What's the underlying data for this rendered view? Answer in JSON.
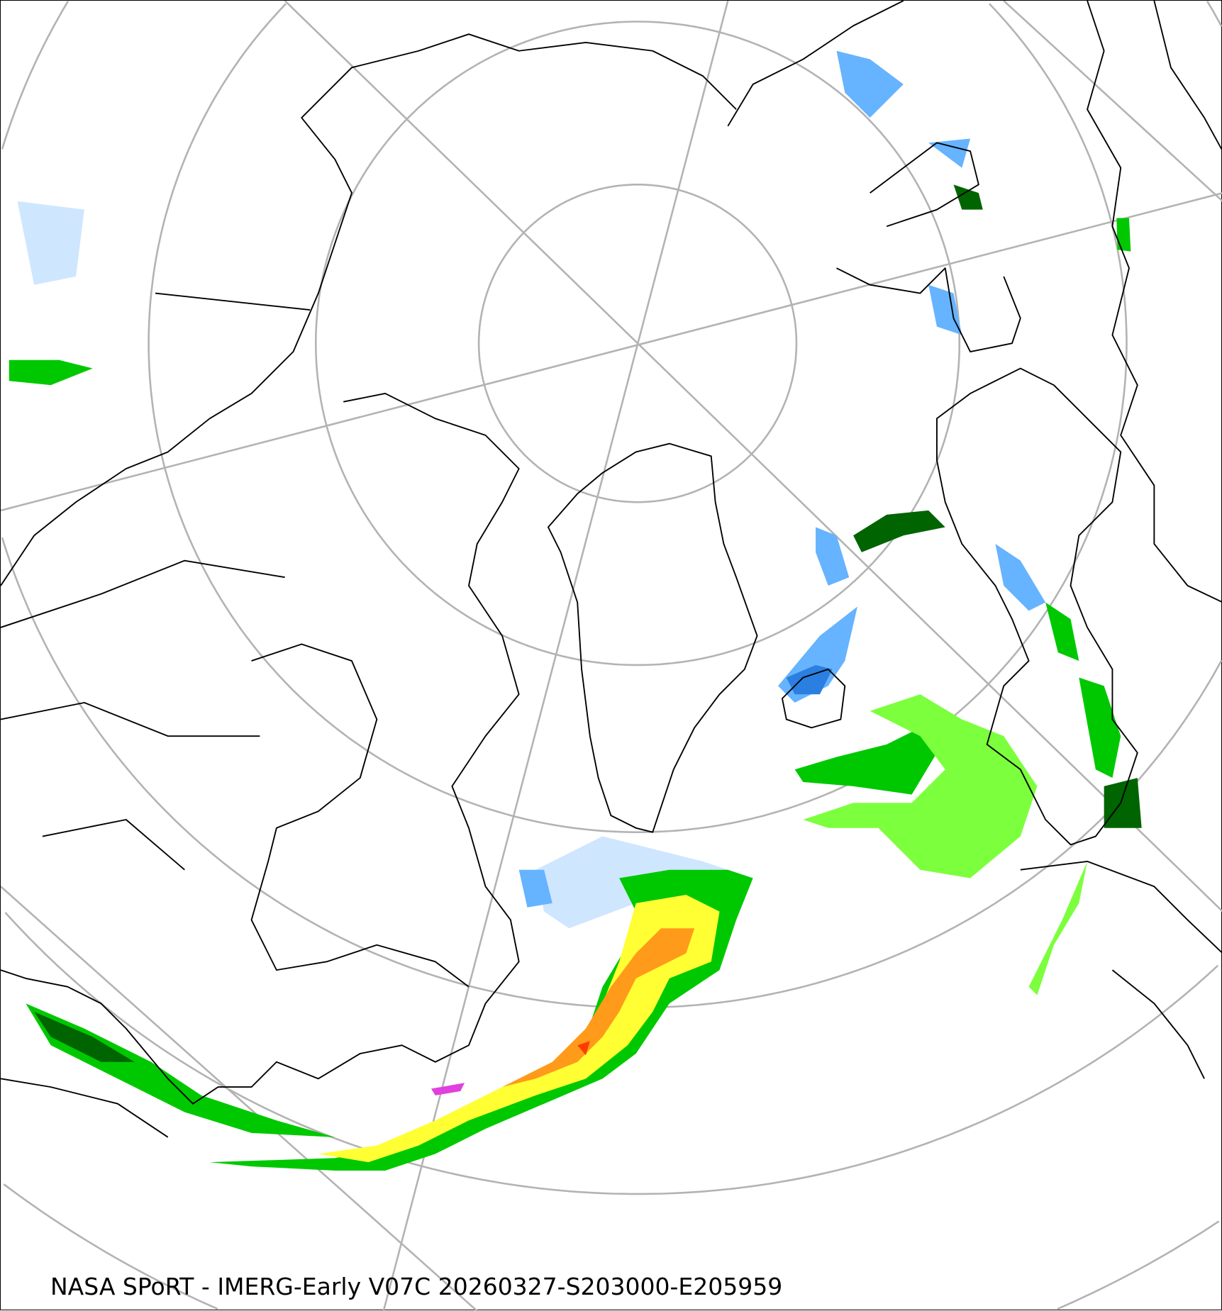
{
  "caption": "NASA SPoRT - IMERG-Early V07C 20260327-S203000-E205959",
  "projection": "north-polar-stereographic",
  "precip_colors": {
    "very_light": "#cfe6ff",
    "light_blue": "#66b3ff",
    "blue": "#2a7fe0",
    "dark_green": "#006400",
    "green": "#00c800",
    "lime": "#7cff3c",
    "yellow": "#ffff33",
    "orange": "#ff9a1a",
    "red": "#ff3c00",
    "magenta": "#e040e0"
  },
  "graticule_color": "#b3b3b3",
  "coastline_color": "#000000"
}
